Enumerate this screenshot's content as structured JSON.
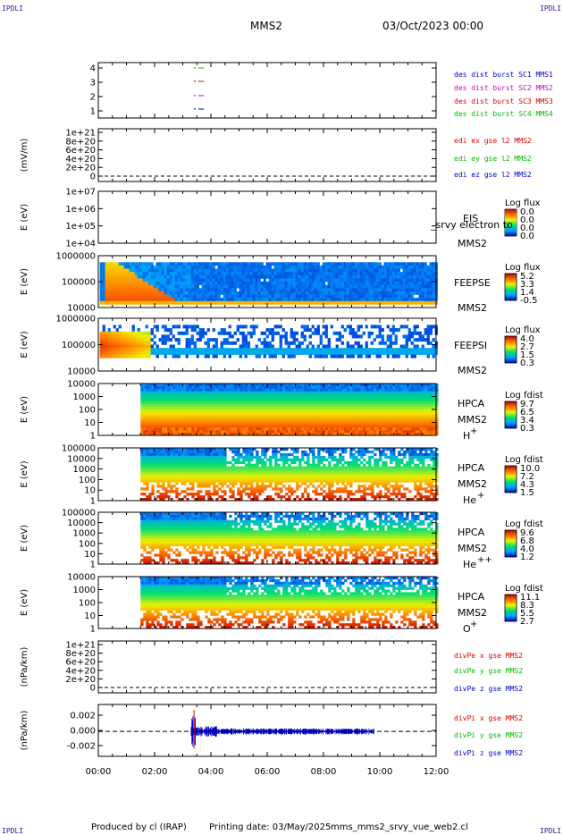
{
  "header": {
    "corner_label": "IPDLI",
    "spacecraft": "MMS2",
    "datetime": "03/Oct/2023 00:00"
  },
  "footer": {
    "produced_by": "Produced by cl (IRAP)",
    "printing_date": "Printing date: 03/May/2025",
    "filename": "mms_mms2_srvy_vue_web2.cl"
  },
  "chart_data": {
    "type": "multi-panel time series",
    "x_axis": {
      "range": [
        "00:00",
        "12:00"
      ],
      "ticks": [
        "00:00",
        "02:00",
        "04:00",
        "06:00",
        "08:00",
        "10:00",
        "12:00"
      ]
    },
    "panels": [
      {
        "id": "burst",
        "type": "scatter",
        "ylabel": "",
        "yticks": [
          "4",
          "3",
          "2",
          "1"
        ],
        "legend": [
          {
            "name": "des dist burst SC1 MMS1",
            "color": "#0000cc"
          },
          {
            "name": "des dist burst SC2 MMS2",
            "color": "#cc00cc"
          },
          {
            "name": "des dist burst SC3 MMS3",
            "color": "#dd0000"
          },
          {
            "name": "des dist burst SC4 MMS4",
            "color": "#00bb00"
          }
        ]
      },
      {
        "id": "edi",
        "type": "line",
        "ylabel": "(mV/m)",
        "yticks": [
          "1e+21",
          "8e+20",
          "6e+20",
          "4e+20",
          "2e+20",
          "0"
        ],
        "legend": [
          {
            "name": "edi ex gse l2 MMS2",
            "color": "#dd0000"
          },
          {
            "name": "edi ey gse l2 MMS2",
            "color": "#00bb00"
          },
          {
            "name": "edi ez gse l2 MMS2",
            "color": "#0000cc"
          }
        ]
      },
      {
        "id": "eis",
        "type": "heatmap",
        "ylabel": "E (eV)",
        "yticks": [
          "1e+07",
          "1e+06",
          "1e+05",
          "1e+04"
        ],
        "side_labels": [
          "EIS",
          "MMS2"
        ],
        "overlap_text": "_srvy electron to",
        "colorbar": {
          "title": "Log flux",
          "values": [
            "0.0",
            "0.0",
            "0.0",
            "0.0"
          ]
        }
      },
      {
        "id": "feepse",
        "type": "heatmap",
        "ylabel": "E (eV)",
        "yticks": [
          "1000000",
          "100000",
          "10000"
        ],
        "side_labels": [
          "FEEPSE",
          "MMS2"
        ],
        "colorbar": {
          "title": "Log flux",
          "values": [
            "5.2",
            "3.3",
            "1.4",
            "-0.5"
          ]
        }
      },
      {
        "id": "feepsi",
        "type": "heatmap",
        "ylabel": "E (eV)",
        "yticks": [
          "1000000",
          "100000",
          "10000"
        ],
        "side_labels": [
          "FEEPSI",
          "MMS2"
        ],
        "colorbar": {
          "title": "Log flux",
          "values": [
            "4.0",
            "2.7",
            "1.5",
            "0.3"
          ]
        }
      },
      {
        "id": "hpca_h",
        "type": "heatmap",
        "ylabel": "E (eV)",
        "yticks": [
          "10000",
          "1000",
          "100",
          "10",
          "1"
        ],
        "side_labels": [
          "HPCA",
          "MMS2"
        ],
        "species": "H",
        "charge": "+",
        "colorbar": {
          "title": "Log fdist",
          "values": [
            "9.7",
            "6.5",
            "3.4",
            "0.3"
          ]
        }
      },
      {
        "id": "hpca_he",
        "type": "heatmap",
        "ylabel": "E (eV)",
        "yticks": [
          "100000",
          "10000",
          "1000",
          "100",
          "10",
          "1"
        ],
        "side_labels": [
          "HPCA",
          "MMS2"
        ],
        "species": "He",
        "charge": "+",
        "colorbar": {
          "title": "Log fdist",
          "values": [
            "10.0",
            "7.2",
            "4.3",
            "1.5"
          ]
        }
      },
      {
        "id": "hpca_hepp",
        "type": "heatmap",
        "ylabel": "E (eV)",
        "yticks": [
          "100000",
          "10000",
          "1000",
          "100",
          "10",
          "1"
        ],
        "side_labels": [
          "HPCA",
          "MMS2"
        ],
        "species": "He",
        "charge": "++",
        "colorbar": {
          "title": "Log fdist",
          "values": [
            "9.6",
            "6.8",
            "4.0",
            "1.2"
          ]
        }
      },
      {
        "id": "hpca_o",
        "type": "heatmap",
        "ylabel": "E (eV)",
        "yticks": [
          "10000",
          "1000",
          "100",
          "10",
          "1"
        ],
        "side_labels": [
          "HPCA",
          "MMS2"
        ],
        "species": "O",
        "charge": "+",
        "colorbar": {
          "title": "Log fdist",
          "values": [
            "11.1",
            "8.3",
            "5.5",
            "2.7"
          ]
        }
      },
      {
        "id": "divpe",
        "type": "line",
        "ylabel": "(nPa/km)",
        "yticks": [
          "1e+21",
          "8e+20",
          "6e+20",
          "4e+20",
          "2e+20",
          "0"
        ],
        "legend": [
          {
            "name": "divPe x gse MMS2",
            "color": "#dd0000"
          },
          {
            "name": "divPe y gse MMS2",
            "color": "#00bb00"
          },
          {
            "name": "divPe z gse MMS2",
            "color": "#0000cc"
          }
        ]
      },
      {
        "id": "divpi",
        "type": "line",
        "ylabel": "(nPa/km)",
        "yticks": [
          "0.002",
          "0.000",
          "-0.002"
        ],
        "legend": [
          {
            "name": "divPi x gse MMS2",
            "color": "#dd0000"
          },
          {
            "name": "divPi y gse MMS2",
            "color": "#00bb00"
          },
          {
            "name": "divPi z gse MMS2",
            "color": "#0000cc"
          }
        ]
      }
    ]
  }
}
